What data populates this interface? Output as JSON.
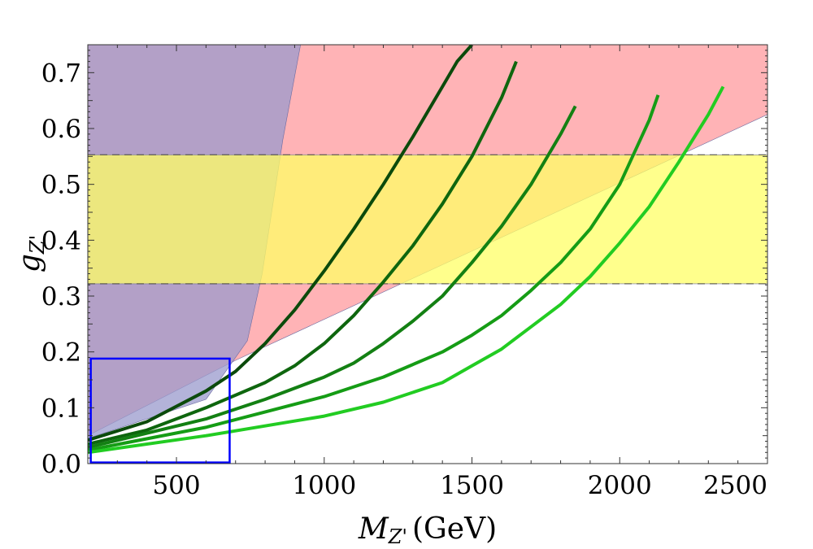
{
  "chart_data": {
    "type": "line",
    "xlabel": {
      "symbol": "M",
      "sub": "Z'",
      "unit": "(GeV)"
    },
    "ylabel": {
      "symbol": "g",
      "sub": "Z'"
    },
    "xlim": [
      200,
      2500
    ],
    "ylim": [
      0,
      0.75
    ],
    "x_ticks": [
      500,
      1000,
      1500,
      2000,
      2500
    ],
    "x_tick_labels": [
      "500",
      "1000",
      "1500",
      "2000",
      "2500"
    ],
    "y_ticks": [
      0.0,
      0.1,
      0.2,
      0.3,
      0.4,
      0.5,
      0.6,
      0.7
    ],
    "y_tick_labels": [
      "0.0",
      "0.1",
      "0.2",
      "0.3",
      "0.4",
      "0.5",
      "0.6",
      "0.7"
    ],
    "grid": false,
    "regions": [
      {
        "name": "",
        "color": "#ff9a9e",
        "polygon": [
          [
            200,
            0.05
          ],
          [
            700,
            0.185
          ],
          [
            2500,
            0.625
          ],
          [
            2500,
            0.75
          ],
          [
            200,
            0.75
          ]
        ]
      },
      {
        "name": "",
        "color": "#9999cc",
        "polygon": [
          [
            200,
            0
          ],
          [
            200,
            0.75
          ],
          [
            920,
            0.75
          ],
          [
            860,
            0.58
          ],
          [
            790,
            0.34
          ],
          [
            740,
            0.22
          ],
          [
            600,
            0.115
          ],
          [
            200,
            0.045
          ]
        ]
      },
      {
        "name": "",
        "color": "#ffff66",
        "polygon": [
          [
            200,
            0.322
          ],
          [
            2500,
            0.322
          ],
          [
            2500,
            0.553
          ],
          [
            200,
            0.553
          ]
        ]
      }
    ],
    "dashed_lines_y": [
      0.322,
      0.553
    ],
    "box": {
      "x": [
        210,
        680
      ],
      "y": [
        0.002,
        0.188
      ],
      "color": "#0000ff"
    },
    "series": [
      {
        "color": "#0b4a0b",
        "x": [
          200,
          400,
          600,
          700,
          800,
          900,
          1000,
          1100,
          1200,
          1300,
          1400,
          1450,
          1500
        ],
        "y": [
          0.042,
          0.075,
          0.13,
          0.165,
          0.215,
          0.275,
          0.345,
          0.42,
          0.5,
          0.585,
          0.675,
          0.72,
          0.75
        ]
      },
      {
        "color": "#0e660e",
        "x": [
          200,
          400,
          600,
          800,
          900,
          1000,
          1100,
          1200,
          1300,
          1400,
          1500,
          1600,
          1650
        ],
        "y": [
          0.035,
          0.06,
          0.1,
          0.145,
          0.175,
          0.215,
          0.265,
          0.325,
          0.39,
          0.465,
          0.55,
          0.655,
          0.72
        ]
      },
      {
        "color": "#138013",
        "x": [
          200,
          600,
          800,
          1000,
          1100,
          1200,
          1300,
          1400,
          1500,
          1600,
          1700,
          1800,
          1850
        ],
        "y": [
          0.029,
          0.08,
          0.115,
          0.155,
          0.18,
          0.215,
          0.255,
          0.3,
          0.36,
          0.425,
          0.5,
          0.59,
          0.64
        ]
      },
      {
        "color": "#159c15",
        "x": [
          200,
          600,
          1000,
          1200,
          1400,
          1500,
          1600,
          1700,
          1800,
          1900,
          2000,
          2100,
          2130
        ],
        "y": [
          0.024,
          0.065,
          0.12,
          0.155,
          0.2,
          0.23,
          0.265,
          0.31,
          0.36,
          0.42,
          0.5,
          0.615,
          0.66
        ]
      },
      {
        "color": "#22cc22",
        "x": [
          200,
          600,
          1000,
          1200,
          1400,
          1500,
          1600,
          1700,
          1800,
          1900,
          2000,
          2100,
          2200,
          2300,
          2350
        ],
        "y": [
          0.02,
          0.05,
          0.085,
          0.11,
          0.145,
          0.175,
          0.205,
          0.245,
          0.285,
          0.335,
          0.395,
          0.46,
          0.54,
          0.625,
          0.675
        ]
      }
    ]
  }
}
